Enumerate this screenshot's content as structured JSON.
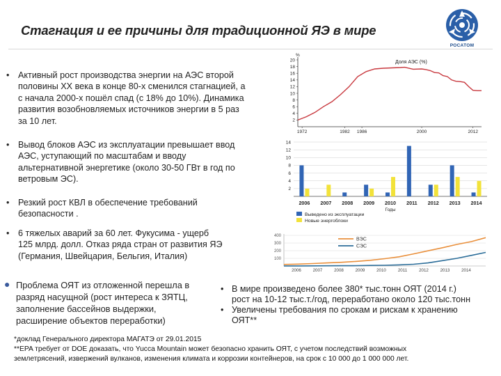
{
  "header": {
    "title": "Стагнация и ее причины для традиционной ЯЭ в мире",
    "logo_text": "РОСАТОМ"
  },
  "colors": {
    "accent_blue": "#2a5fa8",
    "chart_red": "#c8383e",
    "chart_blue_bar": "#3165b5",
    "chart_yellow_bar": "#f2e23a",
    "chart_orange_line": "#e98f3b",
    "chart_teal_line": "#2b6d99"
  },
  "bullets": [
    {
      "lines": [
        "Активный рост производства энергии на АЭС второй",
        "половины XX века в конце 80-х сменился стагнацией, а",
        "с начала 2000-х пошёл спад (с 18% до 10%). Динамика",
        "развития возобновляемых источников энергии в 5 раз",
        "за 10 лет."
      ]
    },
    {
      "lines": [
        "Вывод блоков АЭС из эксплуатации превышает ввод",
        "АЭС, уступающий по масштабам и вводу",
        "альтернативной энергетике (около 30-50 ГВт в год по",
        "ветровым ЭС)."
      ]
    },
    {
      "lines": [
        "Резкий рост КВЛ в обеспечение требований",
        "безопасности ."
      ]
    },
    {
      "lines": [
        "6 тяжелых аварий за 60 лет. Фукусима - ущерб",
        "125 млрд. долл. Отказ ряда стран от развития ЯЭ",
        "(Германия, Швейцария, Бельгия, Италия)"
      ]
    }
  ],
  "lower_left": {
    "lines": [
      "Проблема ОЯТ из отложенной  перешла в",
      "разряд насущной (рост интереса к ЗЯТЦ,",
      "заполнение бассейнов выдержки,",
      "расширение объектов переработки)"
    ]
  },
  "lower_right": [
    {
      "lines": [
        "В мире произведено более 380* тыс.тонн ОЯТ (2014 г.)",
        "рост на 10-12 тыс.т./год, переработано около 120 тыс.тонн"
      ]
    },
    {
      "lines": [
        "Увеличены требования по срокам и рискам к хранению",
        "ОЯТ**"
      ]
    }
  ],
  "footnotes": [
    "*доклад Генерального директора МАГАТЭ от 29.01.2015",
    "**EPA требует от DOE доказать, что Yucca Mountain может безопасно хранить ОЯТ, с учетом последствий возможных",
    "землетрясений, извержений вулканов, изменения климата и коррозии контейнеров, на срок с 10 000 до 1 000 000 лет."
  ],
  "chart_data": [
    {
      "type": "line",
      "title": "Доля АЭС (%)",
      "y_unit_label": "%",
      "x_ticks": [
        "1972",
        "1982",
        "1986",
        "2000",
        "2012"
      ],
      "y_ticks": [
        "2",
        "4",
        "6",
        "8",
        "10",
        "12",
        "14",
        "16",
        "18",
        "20"
      ],
      "ylim": [
        0,
        20
      ],
      "xlim": [
        1971,
        2014
      ],
      "series": [
        {
          "x": [
            1971,
            1973,
            1975,
            1977,
            1979,
            1981,
            1983,
            1985,
            1987,
            1989,
            1991,
            1993,
            1995,
            1996,
            1998,
            2000,
            2001,
            2002,
            2003,
            2004,
            2005,
            2006,
            2007,
            2008,
            2009,
            2010,
            2011,
            2012,
            2013,
            2014
          ],
          "y": [
            2.0,
            3.0,
            4.3,
            6.0,
            7.5,
            9.6,
            12.0,
            15.0,
            16.5,
            17.3,
            17.5,
            17.6,
            17.7,
            17.8,
            17.2,
            17.3,
            17.1,
            16.8,
            16.2,
            16.1,
            15.3,
            15.0,
            14.0,
            13.6,
            13.5,
            13.3,
            12.0,
            10.9,
            10.8,
            10.8
          ]
        }
      ]
    },
    {
      "type": "bar",
      "categories": [
        "2006",
        "2007",
        "2008",
        "2009",
        "2010",
        "2011",
        "2012",
        "2013",
        "2014"
      ],
      "xlabel": "Годы",
      "y_ticks": [
        "2",
        "4",
        "6",
        "8",
        "10",
        "12",
        "14"
      ],
      "ylim": [
        0,
        14
      ],
      "series": [
        {
          "name": "Выведено из эксплуатации",
          "values": [
            8,
            0,
            1,
            3,
            1,
            13,
            3,
            8,
            1
          ]
        },
        {
          "name": "Новые энергоблоки",
          "values": [
            2,
            3,
            0,
            2,
            5,
            0,
            3,
            5,
            4
          ]
        }
      ]
    },
    {
      "type": "line",
      "x_ticks": [
        "2006",
        "2007",
        "2008",
        "2009",
        "2010",
        "2011",
        "2012",
        "2013",
        "2014"
      ],
      "y_ticks": [
        "100",
        "200",
        "300",
        "400"
      ],
      "ylim": [
        0,
        400
      ],
      "series": [
        {
          "name": "ВЭС",
          "x": [
            2000,
            2001,
            2002,
            2003,
            2004,
            2005,
            2006,
            2007,
            2008,
            2009,
            2010,
            2011,
            2012,
            2013,
            2014
          ],
          "y": [
            20,
            25,
            32,
            40,
            48,
            60,
            75,
            95,
            120,
            158,
            198,
            238,
            282,
            318,
            370
          ]
        },
        {
          "name": "СЭС",
          "x": [
            2000,
            2001,
            2002,
            2003,
            2004,
            2005,
            2006,
            2007,
            2008,
            2009,
            2010,
            2011,
            2012,
            2013,
            2014
          ],
          "y": [
            1,
            1,
            2,
            3,
            4,
            5,
            7,
            9,
            15,
            23,
            40,
            70,
            100,
            138,
            177
          ]
        }
      ]
    }
  ]
}
